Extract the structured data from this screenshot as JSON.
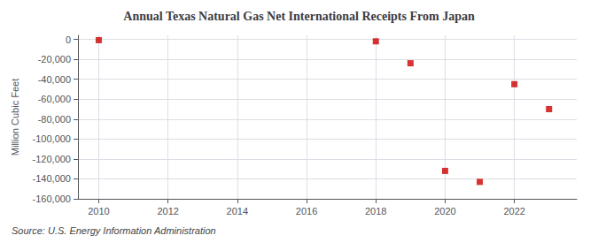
{
  "chart_data": {
    "type": "scatter",
    "title": "Annual Texas Natural Gas Net International Receipts From Japan",
    "ylabel": "Million Cubic Feet",
    "source": "Source: U.S. Energy Information Administration",
    "x": [
      2010,
      2018,
      2019,
      2020,
      2021,
      2022,
      2023
    ],
    "values": [
      -800,
      -2000,
      -24000,
      -132000,
      -143000,
      -45000,
      -70000
    ],
    "color": "#cc0000",
    "marker": "square",
    "xlim": [
      2009.4,
      2023.8
    ],
    "xticks": [
      2010,
      2012,
      2014,
      2016,
      2018,
      2020,
      2022
    ],
    "ylim": [
      -160000,
      4000
    ],
    "yticks": [
      0,
      {
        "value": -20000,
        "label": "-20,000"
      },
      {
        "value": -40000,
        "label": "-40,000"
      },
      {
        "value": -60000,
        "label": "-60,000"
      },
      {
        "value": -80000,
        "label": "-80,000"
      },
      {
        "value": -100000,
        "label": "-100,000"
      },
      {
        "value": -120000,
        "label": "-120,000"
      },
      {
        "value": -140000,
        "label": "-140,000"
      },
      {
        "value": -160000,
        "label": "-160,000"
      }
    ],
    "grid": true
  }
}
